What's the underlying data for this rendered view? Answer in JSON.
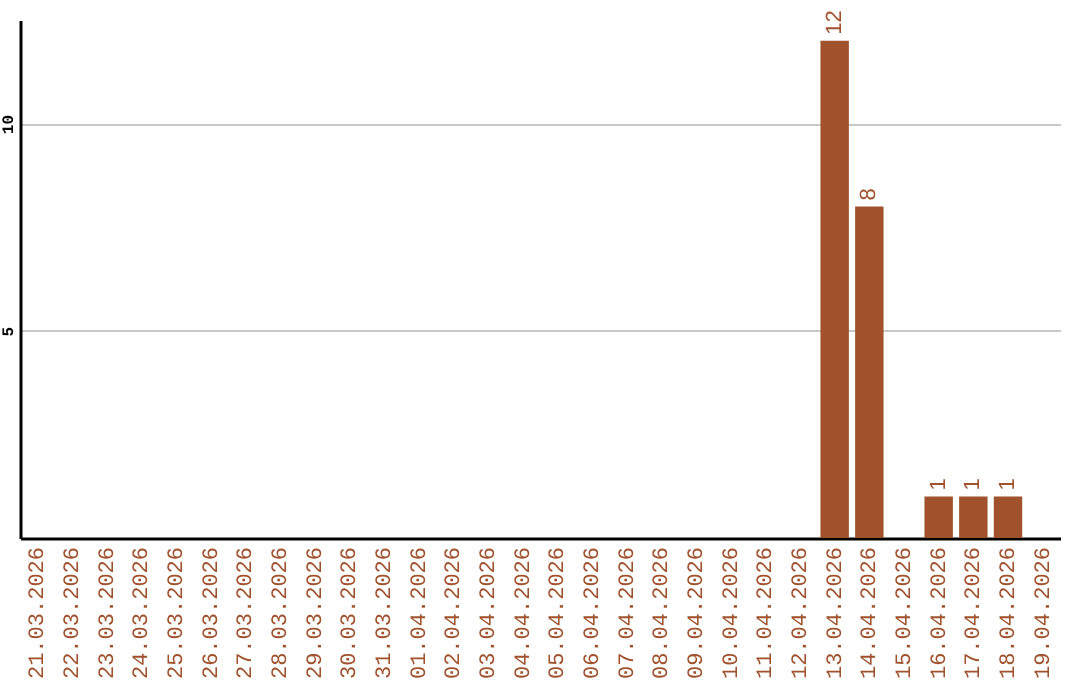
{
  "chart_data": {
    "type": "bar",
    "categories": [
      "21.03.2026",
      "22.03.2026",
      "23.03.2026",
      "24.03.2026",
      "25.03.2026",
      "26.03.2026",
      "27.03.2026",
      "28.03.2026",
      "29.03.2026",
      "30.03.2026",
      "31.03.2026",
      "01.04.2026",
      "02.04.2026",
      "03.04.2026",
      "04.04.2026",
      "05.04.2026",
      "06.04.2026",
      "07.04.2026",
      "08.04.2026",
      "09.04.2026",
      "10.04.2026",
      "11.04.2026",
      "12.04.2026",
      "13.04.2026",
      "14.04.2026",
      "15.04.2026",
      "16.04.2026",
      "17.04.2026",
      "18.04.2026",
      "19.04.2026"
    ],
    "values": [
      0,
      0,
      0,
      0,
      0,
      0,
      0,
      0,
      0,
      0,
      0,
      0,
      0,
      0,
      0,
      0,
      0,
      0,
      0,
      0,
      0,
      0,
      0,
      12,
      8,
      0,
      1,
      1,
      1,
      0
    ],
    "value_labels": [
      null,
      null,
      null,
      null,
      null,
      null,
      null,
      null,
      null,
      null,
      null,
      null,
      null,
      null,
      null,
      null,
      null,
      null,
      null,
      null,
      null,
      null,
      null,
      "12",
      "8",
      null,
      "1",
      "1",
      "1",
      null
    ],
    "color": "#a0522d",
    "ylim": [
      0,
      12.5
    ],
    "yticks": [
      5,
      10
    ],
    "grid": "y"
  }
}
